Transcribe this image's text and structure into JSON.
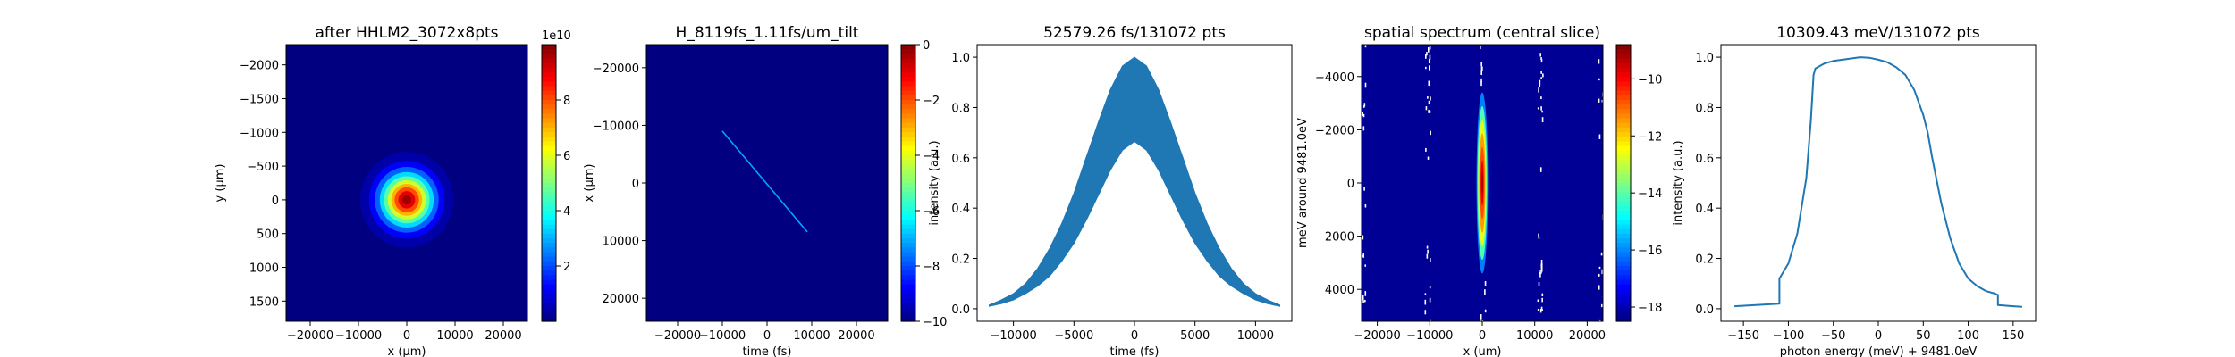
{
  "chart_data": [
    {
      "type": "heatmap",
      "title": "after HHLM2_3072x8pts",
      "xlabel": "x (μm)",
      "ylabel": "y (μm)",
      "xlim": [
        -25000,
        25000
      ],
      "ylim": [
        1800,
        -2300
      ],
      "xticks": [
        -20000,
        -10000,
        0,
        10000,
        20000
      ],
      "yticks": [
        -2000,
        -1500,
        -1000,
        -500,
        0,
        500,
        1000,
        1500
      ],
      "colorbar": {
        "label": "",
        "exponent_label": "1e10",
        "range": [
          0,
          1.0
        ],
        "ticks": [
          0.2,
          0.4,
          0.6,
          0.8
        ],
        "tick_labels": [
          "2",
          "4",
          "6",
          "8"
        ]
      },
      "feature": {
        "shape": "gaussian spot",
        "center": [
          0,
          0
        ],
        "sigma_x": 3800,
        "sigma_y": 280,
        "peak": 1.0
      }
    },
    {
      "type": "heatmap",
      "title": "H_8119fs_1.11fs/um_tilt",
      "xlabel": "time (fs)",
      "ylabel": "x (μm)",
      "xlim": [
        -27000,
        27000
      ],
      "ylim": [
        24000,
        -24000
      ],
      "xticks": [
        -20000,
        -10000,
        0,
        10000,
        20000
      ],
      "yticks": [
        -20000,
        -10000,
        0,
        10000,
        20000
      ],
      "colorbar": {
        "label": "",
        "range": [
          -10,
          0
        ],
        "ticks": [
          0,
          -2,
          -4,
          -6,
          -8,
          -10
        ]
      },
      "feature": {
        "shape": "tilted line",
        "start": [
          -10000,
          -9000
        ],
        "end": [
          9000,
          8500
        ]
      }
    },
    {
      "type": "area",
      "title": "52579.26 fs/131072 pts",
      "xlabel": "time (fs)",
      "ylabel": "intensity (a.u.)",
      "xlim": [
        -13000,
        13000
      ],
      "ylim": [
        -0.05,
        1.05
      ],
      "xticks": [
        -10000,
        -5000,
        0,
        5000,
        10000
      ],
      "yticks": [
        0.0,
        0.2,
        0.4,
        0.6,
        0.8,
        1.0
      ],
      "series": [
        {
          "x": [
            -12000,
            -11000,
            -10000,
            -9000,
            -8000,
            -7000,
            -6000,
            -5000,
            -4000,
            -3000,
            -2000,
            -1000,
            0,
            1000,
            2000,
            3000,
            4000,
            5000,
            6000,
            7000,
            8000,
            9000,
            10000,
            11000,
            12000
          ],
          "upper": [
            0.015,
            0.035,
            0.06,
            0.1,
            0.16,
            0.24,
            0.34,
            0.46,
            0.6,
            0.74,
            0.87,
            0.965,
            1.0,
            0.965,
            0.87,
            0.74,
            0.6,
            0.46,
            0.34,
            0.24,
            0.16,
            0.1,
            0.06,
            0.035,
            0.015
          ],
          "lower": [
            0.01,
            0.02,
            0.035,
            0.06,
            0.09,
            0.13,
            0.19,
            0.26,
            0.35,
            0.45,
            0.55,
            0.63,
            0.665,
            0.63,
            0.55,
            0.45,
            0.35,
            0.26,
            0.19,
            0.13,
            0.09,
            0.06,
            0.035,
            0.02,
            0.01
          ]
        }
      ]
    },
    {
      "type": "heatmap",
      "title": "spatial spectrum (central slice)",
      "xlabel": "x (um)",
      "ylabel": "meV around 9481.0eV",
      "xlim": [
        -23000,
        23000
      ],
      "ylim": [
        5200,
        -5200
      ],
      "xticks": [
        -20000,
        -10000,
        0,
        10000,
        20000
      ],
      "yticks": [
        4000,
        2000,
        0,
        -2000,
        -4000
      ],
      "colorbar": {
        "label": "",
        "range": [
          -18.5,
          -8.8
        ],
        "ticks": [
          -10,
          -12,
          -14,
          -16,
          -18
        ]
      },
      "feature": {
        "shape": "vertical ellipse",
        "center": [
          0,
          0
        ],
        "half_width": 1100,
        "half_height": 3400
      }
    },
    {
      "type": "line",
      "title": "10309.43 meV/131072 pts",
      "xlabel": "photon energy (meV) + 9481.0eV",
      "ylabel": "intensity (a.u.)",
      "xlim": [
        -175,
        175
      ],
      "ylim": [
        -0.05,
        1.05
      ],
      "xticks": [
        -150,
        -100,
        -50,
        0,
        50,
        100,
        150
      ],
      "yticks": [
        0.0,
        0.2,
        0.4,
        0.6,
        0.8,
        1.0
      ],
      "x": [
        -160,
        -110,
        -110,
        -100,
        -90,
        -80,
        -75,
        -72,
        -70,
        -60,
        -50,
        -40,
        -30,
        -20,
        -10,
        0,
        10,
        20,
        30,
        40,
        50,
        55,
        60,
        70,
        80,
        90,
        100,
        110,
        120,
        130,
        133,
        133,
        150,
        160
      ],
      "y": [
        0.01,
        0.02,
        0.12,
        0.18,
        0.3,
        0.52,
        0.75,
        0.93,
        0.955,
        0.975,
        0.985,
        0.99,
        0.995,
        1.0,
        0.998,
        0.99,
        0.98,
        0.96,
        0.93,
        0.87,
        0.77,
        0.7,
        0.6,
        0.42,
        0.28,
        0.18,
        0.12,
        0.09,
        0.07,
        0.06,
        0.055,
        0.015,
        0.01,
        0.008
      ]
    }
  ]
}
